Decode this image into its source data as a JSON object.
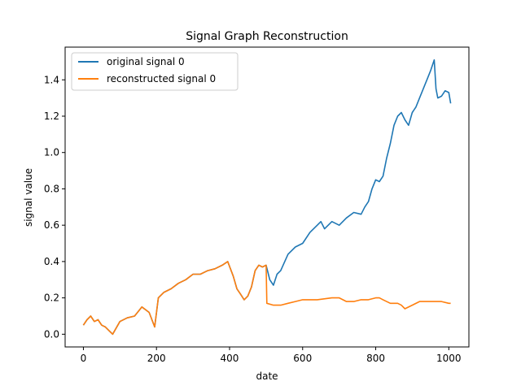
{
  "chart_data": {
    "type": "line",
    "title": "Signal Graph Reconstruction",
    "xlabel": "date",
    "ylabel": "signal value",
    "xlim": [
      -50,
      1055
    ],
    "ylim": [
      -0.07,
      1.58
    ],
    "xticks": [
      0,
      200,
      400,
      600,
      800,
      1000
    ],
    "xtick_labels": [
      "0",
      "200",
      "400",
      "600",
      "800",
      "1000"
    ],
    "yticks": [
      0.0,
      0.2,
      0.4,
      0.6,
      0.8,
      1.0,
      1.2,
      1.4
    ],
    "ytick_labels": [
      "0.0",
      "0.2",
      "0.4",
      "0.6",
      "0.8",
      "1.0",
      "1.2",
      "1.4"
    ],
    "grid": false,
    "legend_position": "top-left",
    "series": [
      {
        "name": "original signal 0",
        "color": "#1f77b4",
        "x": [
          0,
          10,
          20,
          30,
          40,
          50,
          60,
          70,
          80,
          100,
          120,
          140,
          160,
          180,
          195,
          205,
          220,
          240,
          260,
          280,
          300,
          320,
          340,
          360,
          380,
          395,
          410,
          420,
          430,
          440,
          450,
          460,
          470,
          480,
          490,
          500,
          510,
          520,
          530,
          540,
          560,
          580,
          600,
          620,
          640,
          650,
          660,
          680,
          700,
          720,
          740,
          760,
          770,
          780,
          790,
          800,
          810,
          820,
          830,
          840,
          850,
          860,
          870,
          880,
          890,
          900,
          910,
          920,
          930,
          940,
          950,
          960,
          965,
          970,
          980,
          990,
          1000,
          1005
        ],
        "y": [
          0.05,
          0.08,
          0.1,
          0.07,
          0.08,
          0.05,
          0.04,
          0.02,
          0.0,
          0.07,
          0.09,
          0.1,
          0.15,
          0.12,
          0.04,
          0.2,
          0.23,
          0.25,
          0.28,
          0.3,
          0.33,
          0.33,
          0.35,
          0.36,
          0.38,
          0.4,
          0.32,
          0.25,
          0.22,
          0.19,
          0.21,
          0.26,
          0.35,
          0.38,
          0.37,
          0.38,
          0.3,
          0.27,
          0.33,
          0.35,
          0.44,
          0.48,
          0.5,
          0.56,
          0.6,
          0.62,
          0.58,
          0.62,
          0.6,
          0.64,
          0.67,
          0.66,
          0.7,
          0.73,
          0.8,
          0.85,
          0.84,
          0.87,
          0.97,
          1.05,
          1.15,
          1.2,
          1.22,
          1.18,
          1.15,
          1.22,
          1.25,
          1.3,
          1.35,
          1.4,
          1.45,
          1.51,
          1.35,
          1.3,
          1.31,
          1.34,
          1.33,
          1.27
        ]
      },
      {
        "name": "reconstructed signal 0",
        "color": "#ff7f0e",
        "x": [
          0,
          10,
          20,
          30,
          40,
          50,
          60,
          70,
          80,
          100,
          120,
          140,
          160,
          180,
          195,
          205,
          220,
          240,
          260,
          280,
          300,
          320,
          340,
          360,
          380,
          395,
          410,
          420,
          430,
          440,
          450,
          460,
          470,
          480,
          490,
          500,
          502,
          520,
          540,
          560,
          580,
          600,
          640,
          680,
          700,
          720,
          740,
          760,
          780,
          800,
          810,
          820,
          840,
          860,
          870,
          880,
          900,
          920,
          960,
          980,
          1000,
          1005
        ],
        "y": [
          0.05,
          0.08,
          0.1,
          0.07,
          0.08,
          0.05,
          0.04,
          0.02,
          0.0,
          0.07,
          0.09,
          0.1,
          0.15,
          0.12,
          0.04,
          0.2,
          0.23,
          0.25,
          0.28,
          0.3,
          0.33,
          0.33,
          0.35,
          0.36,
          0.38,
          0.4,
          0.32,
          0.25,
          0.22,
          0.19,
          0.21,
          0.26,
          0.35,
          0.38,
          0.37,
          0.38,
          0.17,
          0.16,
          0.16,
          0.17,
          0.18,
          0.19,
          0.19,
          0.2,
          0.2,
          0.18,
          0.18,
          0.19,
          0.19,
          0.2,
          0.2,
          0.19,
          0.17,
          0.17,
          0.16,
          0.14,
          0.16,
          0.18,
          0.18,
          0.18,
          0.17,
          0.17
        ]
      }
    ]
  }
}
